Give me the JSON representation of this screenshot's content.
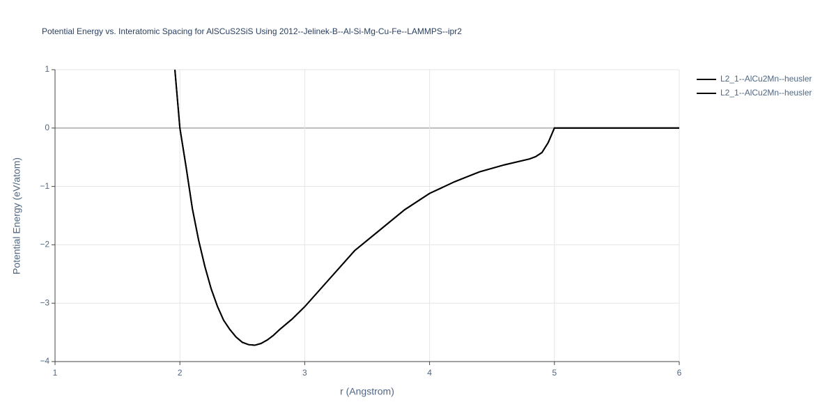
{
  "chart_data": {
    "type": "line",
    "title": "Potential Energy vs. Interatomic Spacing for AlSCuS2SiS Using 2012--Jelinek-B--Al-Si-Mg-Cu-Fe--LAMMPS--ipr2",
    "x_label": "r (Angstrom)",
    "y_label": "Potential Energy (eV/atom)",
    "xlim": [
      1,
      6
    ],
    "ylim": [
      -4,
      1
    ],
    "xticks": [
      1,
      2,
      3,
      4,
      5,
      6
    ],
    "yticks": [
      {
        "value": -4,
        "label": "−4"
      },
      {
        "value": -3,
        "label": "−3"
      },
      {
        "value": -2,
        "label": "−2"
      },
      {
        "value": -1,
        "label": "−1"
      },
      0,
      1
    ],
    "grid": true,
    "series": [
      {
        "name": "L2_1--AlCu2Mn--heusler",
        "color": "#000000",
        "x": [
          1.96,
          2.0,
          2.05,
          2.1,
          2.15,
          2.2,
          2.25,
          2.3,
          2.35,
          2.4,
          2.45,
          2.5,
          2.55,
          2.6,
          2.65,
          2.7,
          2.75,
          2.8,
          2.9,
          3.0,
          3.2,
          3.4,
          3.6,
          3.8,
          4.0,
          4.2,
          4.4,
          4.6,
          4.8,
          4.85,
          4.9,
          4.95,
          5.0,
          5.5,
          6.0
        ],
        "values": [
          1.0,
          0.0,
          -0.67,
          -1.38,
          -1.92,
          -2.37,
          -2.75,
          -3.05,
          -3.29,
          -3.45,
          -3.58,
          -3.67,
          -3.71,
          -3.72,
          -3.69,
          -3.63,
          -3.55,
          -3.45,
          -3.27,
          -3.06,
          -2.58,
          -2.1,
          -1.75,
          -1.4,
          -1.12,
          -0.92,
          -0.75,
          -0.63,
          -0.53,
          -0.49,
          -0.42,
          -0.25,
          0.0,
          0.0,
          0.0
        ]
      },
      {
        "name": "L2_1--AlCu2Mn--heusler",
        "color": "#000000",
        "x": [
          1.96,
          2.0,
          2.05,
          2.1,
          2.15,
          2.2,
          2.25,
          2.3,
          2.35,
          2.4,
          2.45,
          2.5,
          2.55,
          2.6,
          2.65,
          2.7,
          2.75,
          2.8,
          2.9,
          3.0,
          3.2,
          3.4,
          3.6,
          3.8,
          4.0,
          4.2,
          4.4,
          4.6,
          4.8,
          4.85,
          4.9,
          4.95,
          5.0,
          5.5,
          6.0
        ],
        "values": [
          1.0,
          0.0,
          -0.67,
          -1.38,
          -1.92,
          -2.37,
          -2.75,
          -3.05,
          -3.29,
          -3.45,
          -3.58,
          -3.67,
          -3.71,
          -3.72,
          -3.69,
          -3.63,
          -3.55,
          -3.45,
          -3.27,
          -3.06,
          -2.58,
          -2.1,
          -1.75,
          -1.4,
          -1.12,
          -0.92,
          -0.75,
          -0.63,
          -0.53,
          -0.49,
          -0.42,
          -0.25,
          0.0,
          0.0,
          0.0
        ]
      }
    ]
  }
}
